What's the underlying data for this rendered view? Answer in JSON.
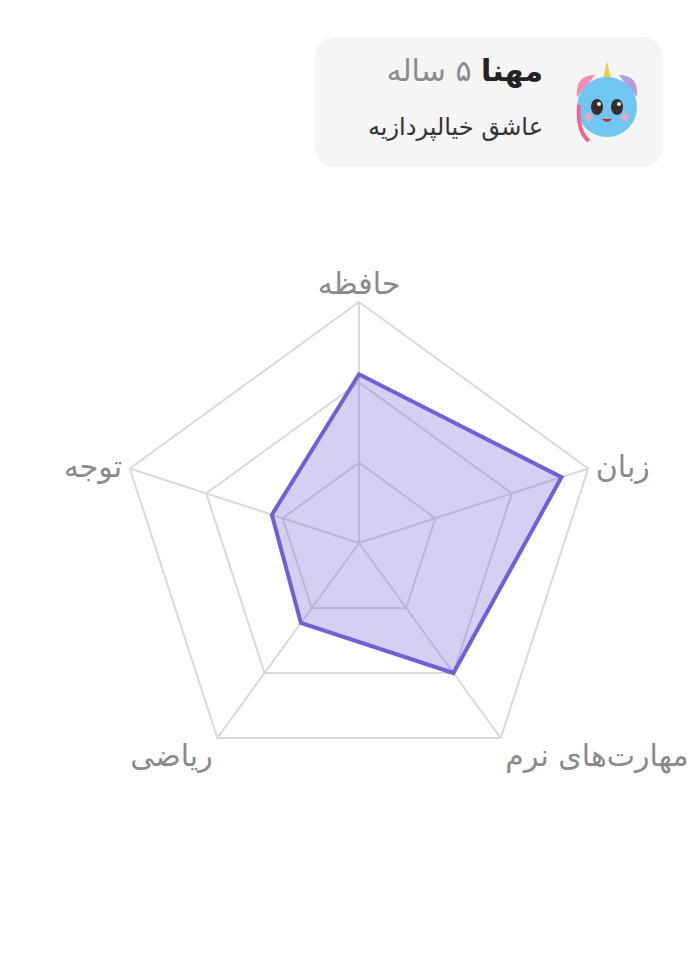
{
  "chart_data": {
    "type": "radar",
    "header": {
      "name": "مهنا",
      "age": "۵ ساله",
      "subtitle": "عاشق خیالپردازیه"
    },
    "categories": [
      "حافظه",
      "زبان",
      "مهارت‌های نرم",
      "ریاضی",
      "توجه"
    ],
    "values": [
      2.1,
      2.65,
      2.0,
      1.23,
      1.14
    ],
    "color": "#7060d8",
    "ylim": [
      0,
      3
    ],
    "yticks": [
      0,
      1,
      2,
      3
    ],
    "grid": true,
    "tick_labels": "x"
  }
}
